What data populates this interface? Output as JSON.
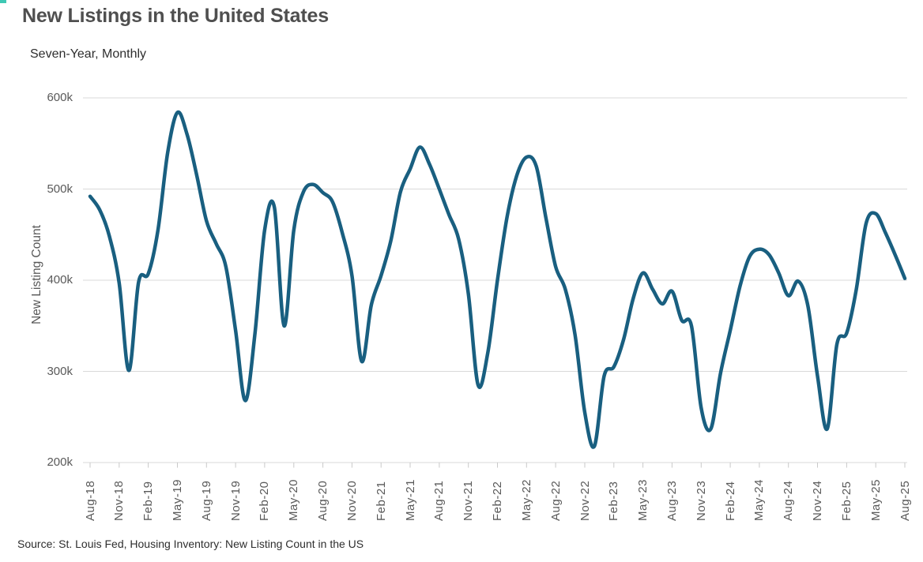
{
  "header": {
    "title": "New Listings in the United States",
    "subtitle": "Seven-Year, Monthly"
  },
  "source": "Source: St. Louis Fed, Housing Inventory: New Listing Count in the US",
  "colors": {
    "line": "#195F80",
    "grid": "#d9d9d9",
    "tick": "#c9c9c9",
    "axis_text": "#595959",
    "title_text": "#4f4f4f",
    "corner_artifact": "#3fc8b4"
  },
  "chart_data": {
    "type": "line",
    "title": "New Listings in the United States",
    "subtitle": "Seven-Year, Monthly",
    "xlabel": "",
    "ylabel": "New Listing Count",
    "units": "thousands of listings (k)",
    "frequency": "monthly",
    "start": "Aug-18",
    "end": "Aug-25",
    "grid": "horizontal-only",
    "legend": "none",
    "ylim_thousands": [
      200,
      600
    ],
    "y_tick_values": [
      600,
      500,
      400,
      300,
      200
    ],
    "y_tick_labels": [
      "600k",
      "500k",
      "400k",
      "300k",
      "200k"
    ],
    "x_tick_every_n_months": 3,
    "x_tick_labels": [
      "Aug-18",
      "Nov-18",
      "Feb-19",
      "May-19",
      "Aug-19",
      "Nov-19",
      "Feb-20",
      "May-20",
      "Aug-20",
      "Nov-20",
      "Feb-21",
      "May-21",
      "Aug-21",
      "Nov-21",
      "Feb-22",
      "May-22",
      "Aug-22",
      "Nov-22",
      "Feb-23",
      "May-23",
      "Aug-23",
      "Nov-23",
      "Feb-24",
      "May-24",
      "Aug-24",
      "Nov-24",
      "Feb-25",
      "May-25",
      "Aug-25"
    ],
    "x": [
      "Aug-18",
      "Sep-18",
      "Oct-18",
      "Nov-18",
      "Dec-18",
      "Jan-19",
      "Feb-19",
      "Mar-19",
      "Apr-19",
      "May-19",
      "Jun-19",
      "Jul-19",
      "Aug-19",
      "Sep-19",
      "Oct-19",
      "Nov-19",
      "Dec-19",
      "Jan-20",
      "Feb-20",
      "Mar-20",
      "Apr-20",
      "May-20",
      "Jun-20",
      "Jul-20",
      "Aug-20",
      "Sep-20",
      "Oct-20",
      "Nov-20",
      "Dec-20",
      "Jan-21",
      "Feb-21",
      "Mar-21",
      "Apr-21",
      "May-21",
      "Jun-21",
      "Jul-21",
      "Aug-21",
      "Sep-21",
      "Oct-21",
      "Nov-21",
      "Dec-21",
      "Jan-22",
      "Feb-22",
      "Mar-22",
      "Apr-22",
      "May-22",
      "Jun-22",
      "Jul-22",
      "Aug-22",
      "Sep-22",
      "Oct-22",
      "Nov-22",
      "Dec-22",
      "Jan-23",
      "Feb-23",
      "Mar-23",
      "Apr-23",
      "May-23",
      "Jun-23",
      "Jul-23",
      "Aug-23",
      "Sep-23",
      "Oct-23",
      "Nov-23",
      "Dec-23",
      "Jan-24",
      "Feb-24",
      "Mar-24",
      "Apr-24",
      "May-24",
      "Jun-24",
      "Jul-24",
      "Aug-24",
      "Sep-24",
      "Oct-24",
      "Nov-24",
      "Dec-24",
      "Jan-25",
      "Feb-25",
      "Mar-25",
      "Apr-25",
      "May-25",
      "Jun-25",
      "Jul-25",
      "Aug-25"
    ],
    "values_thousands": [
      492,
      477,
      448,
      397,
      301,
      398,
      407,
      455,
      540,
      584,
      560,
      515,
      465,
      440,
      415,
      345,
      268,
      342,
      455,
      480,
      350,
      455,
      497,
      505,
      496,
      486,
      452,
      405,
      311,
      373,
      405,
      443,
      497,
      522,
      546,
      527,
      500,
      472,
      445,
      385,
      285,
      320,
      400,
      470,
      515,
      535,
      525,
      468,
      415,
      390,
      340,
      255,
      218,
      295,
      305,
      335,
      380,
      408,
      390,
      374,
      388,
      356,
      350,
      260,
      237,
      298,
      345,
      393,
      426,
      434,
      428,
      408,
      383,
      399,
      372,
      295,
      237,
      330,
      342,
      390,
      462,
      473,
      452,
      428,
      402
    ]
  }
}
